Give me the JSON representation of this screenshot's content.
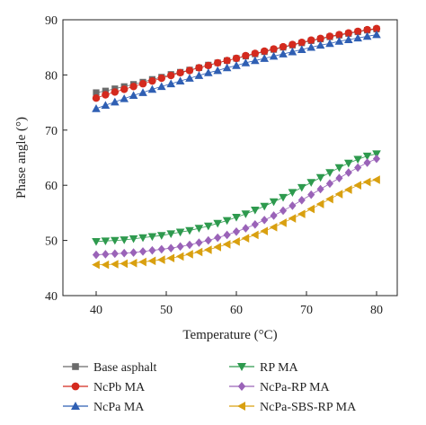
{
  "chart_data": {
    "type": "scatter",
    "title": "",
    "xlabel": "Temperature (°C)",
    "ylabel": "Phase angle (°)",
    "xlim": [
      40,
      80
    ],
    "ylim": [
      40,
      90
    ],
    "xticks": [
      "40",
      "50",
      "60",
      "70",
      "80"
    ],
    "yticks": [
      "40",
      "50",
      "60",
      "70",
      "80",
      "90"
    ],
    "grid": false,
    "legend_position": "below",
    "x": [
      40,
      41.33,
      42.67,
      44,
      45.33,
      46.67,
      48,
      49.33,
      50.67,
      52,
      53.33,
      54.67,
      56,
      57.33,
      58.67,
      60,
      61.33,
      62.67,
      64,
      65.33,
      66.67,
      68,
      69.33,
      70.67,
      72,
      73.33,
      74.67,
      76,
      77.33,
      78.67,
      80
    ],
    "series": [
      {
        "name": "Base asphalt",
        "color": "#6b6b6b",
        "marker": "square",
        "values": [
          76.8,
          77.1,
          77.5,
          77.9,
          78.3,
          78.7,
          79.2,
          79.6,
          80.1,
          80.5,
          80.9,
          81.3,
          81.8,
          82.2,
          82.6,
          83.0,
          83.4,
          83.8,
          84.2,
          84.6,
          85.0,
          85.4,
          85.8,
          86.2,
          86.5,
          86.9,
          87.2,
          87.5,
          87.8,
          88.1,
          88.3
        ]
      },
      {
        "name": "NcPb MA",
        "color": "#d42a1e",
        "marker": "circle",
        "values": [
          75.8,
          76.4,
          76.9,
          77.4,
          77.9,
          78.4,
          78.9,
          79.4,
          79.9,
          80.4,
          80.8,
          81.3,
          81.7,
          82.2,
          82.6,
          83.0,
          83.5,
          83.9,
          84.3,
          84.7,
          85.1,
          85.5,
          85.9,
          86.3,
          86.6,
          87.0,
          87.3,
          87.6,
          87.9,
          88.2,
          88.4
        ]
      },
      {
        "name": "NcPa MA",
        "color": "#2f5fb3",
        "marker": "triangle-up",
        "values": [
          73.9,
          74.5,
          75.1,
          75.7,
          76.3,
          76.8,
          77.4,
          77.9,
          78.4,
          78.9,
          79.4,
          79.9,
          80.4,
          80.8,
          81.3,
          81.7,
          82.2,
          82.6,
          83.0,
          83.4,
          83.8,
          84.2,
          84.6,
          85.0,
          85.4,
          85.7,
          86.1,
          86.4,
          86.7,
          87.0,
          87.3
        ]
      },
      {
        "name": "RP MA",
        "color": "#2e9a4e",
        "marker": "triangle-down",
        "values": [
          49.8,
          49.9,
          50.0,
          50.1,
          50.3,
          50.5,
          50.7,
          50.9,
          51.2,
          51.5,
          51.8,
          52.2,
          52.6,
          53.1,
          53.6,
          54.2,
          54.8,
          55.5,
          56.2,
          57.0,
          57.8,
          58.7,
          59.6,
          60.5,
          61.4,
          62.3,
          63.2,
          64.0,
          64.7,
          65.3,
          65.7
        ]
      },
      {
        "name": "NcPa-RP MA",
        "color": "#9a63b8",
        "marker": "diamond",
        "values": [
          47.4,
          47.5,
          47.6,
          47.7,
          47.8,
          48.0,
          48.2,
          48.4,
          48.6,
          48.9,
          49.2,
          49.6,
          50.0,
          50.5,
          51.0,
          51.6,
          52.2,
          52.9,
          53.7,
          54.5,
          55.4,
          56.3,
          57.3,
          58.3,
          59.3,
          60.3,
          61.3,
          62.3,
          63.2,
          64.1,
          64.8
        ]
      },
      {
        "name": "NcPa-SBS-RP MA",
        "color": "#d9a010",
        "marker": "triangle-left",
        "values": [
          45.6,
          45.6,
          45.7,
          45.8,
          45.9,
          46.1,
          46.3,
          46.5,
          46.8,
          47.1,
          47.5,
          47.9,
          48.3,
          48.8,
          49.3,
          49.8,
          50.4,
          51.0,
          51.7,
          52.4,
          53.2,
          54.0,
          54.8,
          55.7,
          56.6,
          57.5,
          58.4,
          59.2,
          60.0,
          60.6,
          61.0
        ]
      }
    ]
  }
}
